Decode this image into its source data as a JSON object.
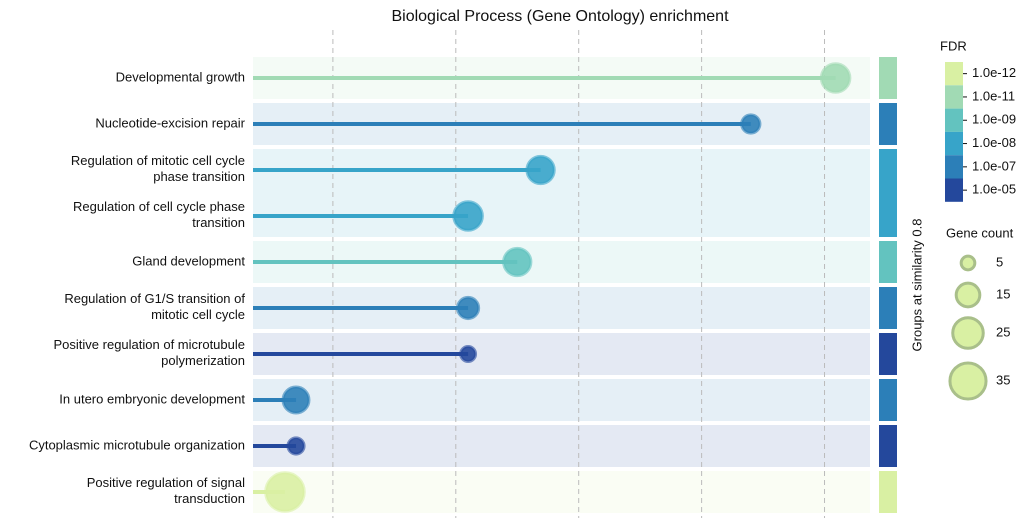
{
  "chart_data": {
    "type": "lollipop",
    "title": "Biological Process (Gene Ontology) enrichment",
    "categories": [
      "Developmental growth",
      "Nucleotide-excision repair",
      "Regulation of mitotic cell cycle phase transition",
      "Regulation of cell cycle phase transition",
      "Gland development",
      "Regulation of G1/S transition of mitotic cell cycle",
      "Positive regulation of microtubule polymerization",
      "In utero embryonic development",
      "Cytoplasmic microtubule organization",
      "Positive regulation of signal transduction"
    ],
    "series": [
      {
        "values": [
          5.09,
          4.4,
          2.69,
          2.1,
          2.5,
          2.1,
          2.1,
          0.7,
          0.7,
          0.61
        ],
        "sizes": [
          22,
          9,
          20,
          22,
          20,
          12,
          6,
          18,
          7,
          40
        ],
        "colors": [
          "#a1dab4",
          "#2c7fb8",
          "#37a4c9",
          "#37a4c9",
          "#63c3bf",
          "#2c7fb8",
          "#24489c",
          "#2c7fb8",
          "#24489c",
          "#d9f0a3"
        ]
      }
    ],
    "xlim": [
      0.35,
      5.37
    ],
    "xticks": [
      1,
      2,
      3,
      4,
      5
    ],
    "grid": true,
    "group_label": "Groups at similarity 0.8",
    "fdr_legend": {
      "title": "FDR",
      "labels": [
        "1.0e-12",
        "1.0e-11",
        "1.0e-09",
        "1.0e-08",
        "1.0e-07",
        "1.0e-05"
      ],
      "colors": [
        "#d9f0a3",
        "#a1dab4",
        "#63c3bf",
        "#37a4c9",
        "#2c7fb8",
        "#24489c"
      ]
    },
    "size_legend": {
      "title": "Gene count",
      "values": [
        5,
        15,
        25,
        35
      ]
    }
  }
}
